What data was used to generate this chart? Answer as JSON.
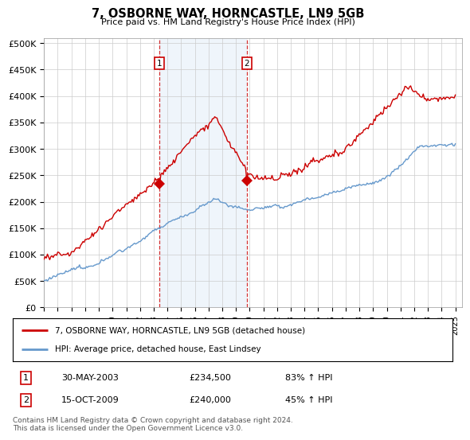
{
  "title": "7, OSBORNE WAY, HORNCASTLE, LN9 5GB",
  "subtitle": "Price paid vs. HM Land Registry's House Price Index (HPI)",
  "ylim": [
    0,
    510000
  ],
  "yticks": [
    0,
    50000,
    100000,
    150000,
    200000,
    250000,
    300000,
    350000,
    400000,
    450000,
    500000
  ],
  "ytick_labels": [
    "£0",
    "£50K",
    "£100K",
    "£150K",
    "£200K",
    "£250K",
    "£300K",
    "£350K",
    "£400K",
    "£450K",
    "£500K"
  ],
  "xlim_start": 1995.0,
  "xlim_end": 2025.5,
  "transaction1_x": 2003.41,
  "transaction1_y": 234500,
  "transaction1_label": "30-MAY-2003",
  "transaction1_price": "£234,500",
  "transaction1_hpi": "83% ↑ HPI",
  "transaction2_x": 2009.79,
  "transaction2_y": 240000,
  "transaction2_label": "15-OCT-2009",
  "transaction2_price": "£240,000",
  "transaction2_hpi": "45% ↑ HPI",
  "house_color": "#cc0000",
  "hpi_color": "#6699cc",
  "background_color": "#ffffff",
  "grid_color": "#cccccc",
  "shaded_color": "#ddeeff",
  "legend_house": "7, OSBORNE WAY, HORNCASTLE, LN9 5GB (detached house)",
  "legend_hpi": "HPI: Average price, detached house, East Lindsey",
  "footer": "Contains HM Land Registry data © Crown copyright and database right 2024.\nThis data is licensed under the Open Government Licence v3.0.",
  "xticks": [
    1995,
    1996,
    1997,
    1998,
    1999,
    2000,
    2001,
    2002,
    2003,
    2004,
    2005,
    2006,
    2007,
    2008,
    2009,
    2010,
    2011,
    2012,
    2013,
    2014,
    2015,
    2016,
    2017,
    2018,
    2019,
    2020,
    2021,
    2022,
    2023,
    2024,
    2025
  ]
}
